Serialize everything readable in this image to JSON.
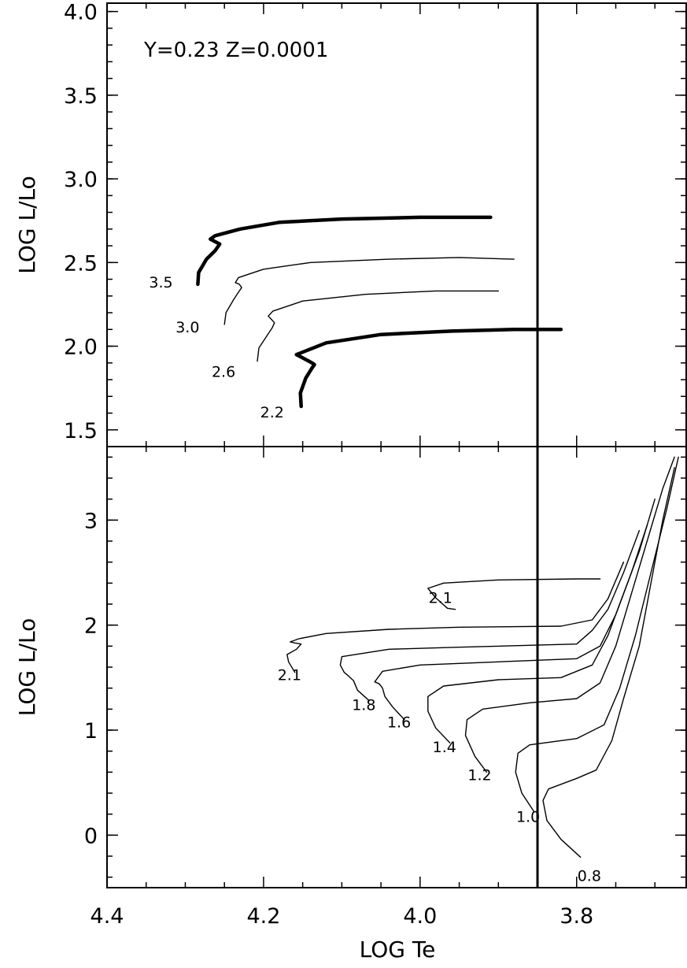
{
  "chart_data": [
    {
      "type": "line",
      "title": "",
      "annotation": "Y=0.23   Z=0.0001",
      "xlabel": "",
      "ylabel": "LOG L/Lo",
      "xlim": [
        4.4,
        3.66
      ],
      "ylim": [
        1.4,
        4.05
      ],
      "x_ticks": [
        4.4,
        4.2,
        4.0,
        3.8
      ],
      "y_ticks": [
        1.5,
        2.0,
        2.5,
        3.0,
        3.5,
        4.0
      ],
      "y_tick_labels": [
        "1.5",
        "2.0",
        "2.5",
        "3.0",
        "3.5",
        "4.0"
      ],
      "vertical_line_x": 3.85,
      "series": [
        {
          "name": "3.5",
          "points": [
            [
              4.284,
              2.37
            ],
            [
              4.283,
              2.44
            ],
            [
              4.273,
              2.52
            ],
            [
              4.262,
              2.57
            ],
            [
              4.256,
              2.61
            ],
            [
              4.26,
              2.62
            ],
            [
              4.268,
              2.64
            ],
            [
              4.262,
              2.66
            ],
            [
              4.23,
              2.7
            ],
            [
              4.18,
              2.74
            ],
            [
              4.1,
              2.76
            ],
            [
              4.0,
              2.77
            ],
            [
              3.95,
              2.77
            ],
            [
              3.91,
              2.77
            ]
          ]
        },
        {
          "name": "3.0",
          "points": [
            [
              4.25,
              2.13
            ],
            [
              4.248,
              2.2
            ],
            [
              4.238,
              2.28
            ],
            [
              4.231,
              2.33
            ],
            [
              4.228,
              2.35
            ],
            [
              4.231,
              2.37
            ],
            [
              4.236,
              2.38
            ],
            [
              4.232,
              2.41
            ],
            [
              4.2,
              2.46
            ],
            [
              4.14,
              2.5
            ],
            [
              4.04,
              2.52
            ],
            [
              3.95,
              2.53
            ],
            [
              3.88,
              2.52
            ]
          ]
        },
        {
          "name": "2.6",
          "points": [
            [
              4.208,
              1.91
            ],
            [
              4.206,
              1.99
            ],
            [
              4.196,
              2.06
            ],
            [
              4.189,
              2.11
            ],
            [
              4.186,
              2.14
            ],
            [
              4.19,
              2.16
            ],
            [
              4.194,
              2.18
            ],
            [
              4.188,
              2.21
            ],
            [
              4.15,
              2.27
            ],
            [
              4.07,
              2.31
            ],
            [
              3.98,
              2.33
            ],
            [
              3.9,
              2.33
            ]
          ]
        },
        {
          "name": "2.2",
          "points": [
            [
              4.152,
              1.64
            ],
            [
              4.153,
              1.72
            ],
            [
              4.146,
              1.81
            ],
            [
              4.138,
              1.87
            ],
            [
              4.135,
              1.89
            ],
            [
              4.138,
              1.9
            ],
            [
              4.142,
              1.91
            ],
            [
              4.146,
              1.92
            ],
            [
              4.158,
              1.95
            ],
            [
              4.12,
              2.02
            ],
            [
              4.05,
              2.07
            ],
            [
              3.96,
              2.09
            ],
            [
              3.88,
              2.1
            ],
            [
              3.82,
              2.1
            ]
          ]
        }
      ]
    },
    {
      "type": "line",
      "title": "",
      "xlabel": "LOG Te",
      "ylabel": "LOG L/Lo",
      "xlim": [
        4.4,
        3.66
      ],
      "ylim": [
        -0.5,
        3.7
      ],
      "x_ticks": [
        4.4,
        4.2,
        4.0,
        3.8
      ],
      "x_tick_labels": [
        "4.4",
        "4.2",
        "4.0",
        "3.8"
      ],
      "y_ticks": [
        0,
        1,
        2,
        3
      ],
      "y_tick_labels": [
        "0",
        "1",
        "2",
        "3"
      ],
      "vertical_line_x": 3.85,
      "series": [
        {
          "name": "0.8",
          "points": [
            [
              3.795,
              -0.21
            ],
            [
              3.82,
              -0.04
            ],
            [
              3.838,
              0.14
            ],
            [
              3.843,
              0.33
            ],
            [
              3.836,
              0.44
            ],
            [
              3.8,
              0.54
            ],
            [
              3.775,
              0.62
            ],
            [
              3.755,
              0.9
            ],
            [
              3.74,
              1.3
            ],
            [
              3.72,
              1.8
            ],
            [
              3.705,
              2.4
            ],
            [
              3.69,
              3.0
            ],
            [
              3.675,
              3.5
            ]
          ]
        },
        {
          "name": "1.0",
          "points": [
            [
              3.855,
              0.23
            ],
            [
              3.87,
              0.4
            ],
            [
              3.878,
              0.6
            ],
            [
              3.875,
              0.78
            ],
            [
              3.86,
              0.86
            ],
            [
              3.8,
              0.92
            ],
            [
              3.765,
              1.05
            ],
            [
              3.745,
              1.4
            ],
            [
              3.725,
              1.9
            ],
            [
              3.705,
              2.5
            ],
            [
              3.685,
              3.1
            ],
            [
              3.67,
              3.6
            ]
          ]
        },
        {
          "name": "1.2",
          "points": [
            [
              3.915,
              0.6
            ],
            [
              3.93,
              0.75
            ],
            [
              3.942,
              0.95
            ],
            [
              3.94,
              1.1
            ],
            [
              3.92,
              1.2
            ],
            [
              3.86,
              1.26
            ],
            [
              3.8,
              1.3
            ],
            [
              3.77,
              1.45
            ],
            [
              3.75,
              1.8
            ],
            [
              3.73,
              2.3
            ],
            [
              3.71,
              2.8
            ],
            [
              3.69,
              3.3
            ],
            [
              3.675,
              3.6
            ]
          ]
        },
        {
          "name": "1.4",
          "points": [
            [
              3.962,
              0.88
            ],
            [
              3.98,
              1.02
            ],
            [
              3.99,
              1.18
            ],
            [
              3.99,
              1.32
            ],
            [
              3.97,
              1.42
            ],
            [
              3.9,
              1.48
            ],
            [
              3.82,
              1.5
            ],
            [
              3.78,
              1.62
            ],
            [
              3.76,
              1.9
            ],
            [
              3.74,
              2.3
            ],
            [
              3.72,
              2.7
            ],
            [
              3.7,
              3.2
            ]
          ]
        },
        {
          "name": "1.6",
          "points": [
            [
              4.02,
              1.1
            ],
            [
              4.035,
              1.22
            ],
            [
              4.045,
              1.32
            ],
            [
              4.048,
              1.4
            ],
            [
              4.052,
              1.44
            ],
            [
              4.058,
              1.46
            ],
            [
              4.048,
              1.56
            ],
            [
              4.0,
              1.62
            ],
            [
              3.9,
              1.65
            ],
            [
              3.8,
              1.68
            ],
            [
              3.77,
              1.8
            ],
            [
              3.75,
              2.1
            ],
            [
              3.73,
              2.5
            ],
            [
              3.71,
              2.95
            ]
          ]
        },
        {
          "name": "1.8",
          "points": [
            [
              4.065,
              1.28
            ],
            [
              4.08,
              1.38
            ],
            [
              4.085,
              1.47
            ],
            [
              4.092,
              1.52
            ],
            [
              4.097,
              1.55
            ],
            [
              4.102,
              1.62
            ],
            [
              4.1,
              1.7
            ],
            [
              4.04,
              1.77
            ],
            [
              3.95,
              1.79
            ],
            [
              3.8,
              1.82
            ],
            [
              3.78,
              1.95
            ],
            [
              3.76,
              2.15
            ],
            [
              3.74,
              2.5
            ],
            [
              3.72,
              2.9
            ]
          ]
        },
        {
          "name": "2.1",
          "points": [
            [
              4.16,
              1.55
            ],
            [
              4.168,
              1.65
            ],
            [
              4.17,
              1.72
            ],
            [
              4.158,
              1.77
            ],
            [
              4.152,
              1.82
            ],
            [
              4.16,
              1.83
            ],
            [
              4.166,
              1.84
            ],
            [
              4.155,
              1.87
            ],
            [
              4.12,
              1.92
            ],
            [
              4.04,
              1.96
            ],
            [
              3.95,
              1.98
            ],
            [
              3.82,
              1.99
            ],
            [
              3.78,
              2.05
            ],
            [
              3.76,
              2.25
            ],
            [
              3.74,
              2.6
            ]
          ]
        },
        {
          "name": "2.1",
          "points": [
            [
              3.955,
              2.15
            ],
            [
              3.965,
              2.16
            ],
            [
              3.98,
              2.26
            ],
            [
              3.99,
              2.35
            ],
            [
              3.97,
              2.4
            ],
            [
              3.9,
              2.43
            ],
            [
              3.8,
              2.44
            ],
            [
              3.77,
              2.44
            ]
          ]
        }
      ]
    }
  ]
}
